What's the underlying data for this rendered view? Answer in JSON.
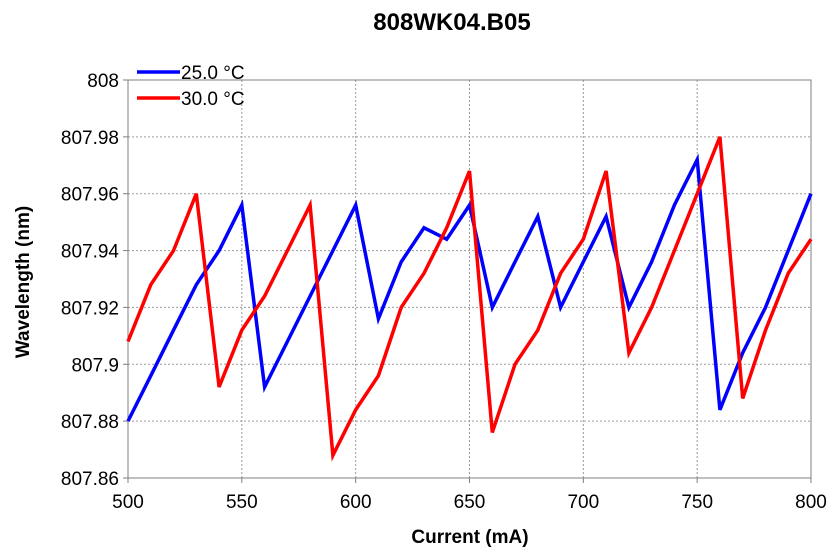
{
  "chart_data": {
    "type": "line",
    "title": "808WK04.B05",
    "xlabel": "Current (mA)",
    "ylabel": "Wavelength (nm)",
    "xlim": [
      500,
      800
    ],
    "ylim": [
      807.86,
      808
    ],
    "xticks": [
      500,
      550,
      600,
      650,
      700,
      750,
      800
    ],
    "xtick_labels": [
      "500",
      "550",
      "600",
      "650",
      "700",
      "750",
      "800"
    ],
    "yticks": [
      807.86,
      807.88,
      807.9,
      807.92,
      807.94,
      807.96,
      807.98,
      808
    ],
    "ytick_labels": [
      "807.86",
      "807.88",
      "807.9",
      "807.92",
      "807.94",
      "807.96",
      "807.98",
      "808"
    ],
    "grid": true,
    "legend_position": "top-left",
    "x": [
      500,
      510,
      520,
      530,
      540,
      550,
      560,
      570,
      580,
      590,
      600,
      610,
      620,
      630,
      640,
      650,
      660,
      670,
      680,
      690,
      700,
      710,
      720,
      730,
      740,
      750,
      760,
      770,
      780,
      790,
      800
    ],
    "series": [
      {
        "name": "25.0 °C",
        "color": "#0000ff",
        "values": [
          807.88,
          807.896,
          807.912,
          807.928,
          807.94,
          807.956,
          807.892,
          807.908,
          807.924,
          807.94,
          807.956,
          807.916,
          807.936,
          807.948,
          807.944,
          807.956,
          807.92,
          807.936,
          807.952,
          807.92,
          807.936,
          807.952,
          807.92,
          807.936,
          807.956,
          807.972,
          807.884,
          807.904,
          807.92,
          807.94,
          807.96
        ]
      },
      {
        "name": "30.0 °C",
        "color": "#ff0000",
        "values": [
          807.908,
          807.928,
          807.94,
          807.96,
          807.892,
          807.912,
          807.924,
          807.94,
          807.956,
          807.868,
          807.884,
          807.896,
          807.92,
          807.932,
          807.948,
          807.968,
          807.876,
          807.9,
          807.912,
          807.932,
          807.944,
          807.968,
          807.904,
          807.92,
          807.94,
          807.96,
          807.98,
          807.888,
          807.912,
          807.932,
          807.944
        ]
      }
    ]
  }
}
